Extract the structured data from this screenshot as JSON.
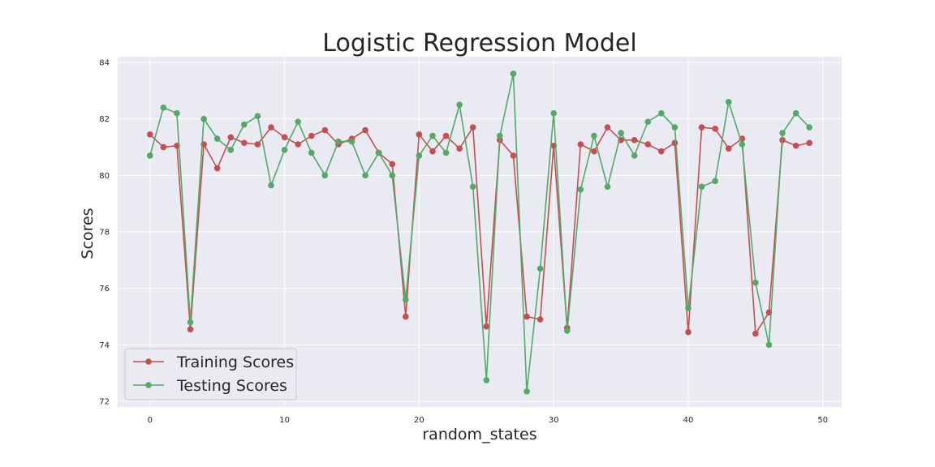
{
  "chart_data": {
    "type": "line",
    "title": "Logistic Regression Model",
    "xlabel": "random_states",
    "ylabel": "Scores",
    "xlim": [
      -2.4,
      51.4
    ],
    "ylim": [
      71.8,
      84.2
    ],
    "xticks": [
      0,
      10,
      20,
      30,
      40,
      50
    ],
    "yticks": [
      72,
      74,
      76,
      78,
      80,
      82,
      84
    ],
    "grid": true,
    "legend_position": "lower-left",
    "x": [
      0,
      1,
      2,
      3,
      4,
      5,
      6,
      7,
      8,
      9,
      10,
      11,
      12,
      13,
      14,
      15,
      16,
      17,
      18,
      19,
      20,
      21,
      22,
      23,
      24,
      25,
      26,
      27,
      28,
      29,
      30,
      31,
      32,
      33,
      34,
      35,
      36,
      37,
      38,
      39,
      40,
      41,
      42,
      43,
      44,
      45,
      46,
      47,
      48,
      49
    ],
    "series": [
      {
        "name": "Training Scores",
        "color": "#c44e52",
        "values": [
          81.45,
          81.0,
          81.05,
          74.55,
          81.1,
          80.25,
          81.35,
          81.15,
          81.1,
          81.7,
          81.35,
          81.1,
          81.4,
          81.6,
          81.1,
          81.3,
          81.6,
          80.8,
          80.4,
          75.0,
          81.45,
          80.85,
          81.4,
          80.95,
          81.7,
          74.65,
          81.25,
          80.7,
          75.0,
          74.9,
          81.05,
          74.6,
          81.1,
          80.85,
          81.7,
          81.25,
          81.25,
          81.1,
          80.85,
          81.15,
          74.45,
          81.7,
          81.65,
          80.95,
          81.3,
          74.4,
          75.15,
          81.25,
          81.05,
          81.15
        ]
      },
      {
        "name": "Testing Scores",
        "color": "#55a868",
        "values": [
          80.7,
          82.4,
          82.2,
          74.8,
          82.0,
          81.3,
          80.9,
          81.8,
          82.1,
          79.65,
          80.9,
          81.9,
          80.8,
          80.0,
          81.2,
          81.2,
          80.0,
          80.8,
          80.0,
          75.6,
          80.7,
          81.4,
          80.8,
          82.5,
          79.6,
          72.75,
          81.4,
          83.6,
          72.35,
          76.7,
          82.2,
          74.5,
          79.5,
          81.4,
          79.6,
          81.5,
          80.7,
          81.9,
          82.2,
          81.7,
          75.3,
          79.6,
          79.8,
          82.6,
          81.1,
          76.2,
          74.0,
          81.5,
          82.2,
          81.7
        ]
      }
    ]
  }
}
